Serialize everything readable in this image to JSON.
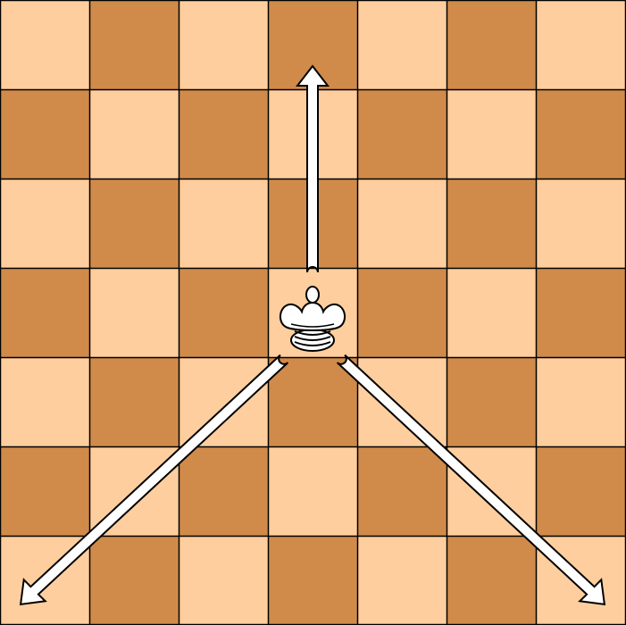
{
  "board": {
    "rows": 7,
    "cols": 7,
    "light_color": "#FECE9E",
    "dark_color": "#D08B4A",
    "grid_line_color": "#000000"
  },
  "piece": {
    "type": "queen",
    "color": "white",
    "square": {
      "col": 3,
      "row": 3
    }
  },
  "arrows": [
    {
      "name": "arrow-up",
      "from": {
        "col": 3,
        "row": 3
      },
      "to": {
        "col": 3,
        "row": 0
      }
    },
    {
      "name": "arrow-down-left",
      "from": {
        "col": 3,
        "row": 3
      },
      "to": {
        "col": 0,
        "row": 6
      }
    },
    {
      "name": "arrow-down-right",
      "from": {
        "col": 3,
        "row": 3
      },
      "to": {
        "col": 6,
        "row": 6
      }
    }
  ],
  "arrow_style": {
    "fill": "#FFFFFF",
    "stroke": "#000000"
  }
}
